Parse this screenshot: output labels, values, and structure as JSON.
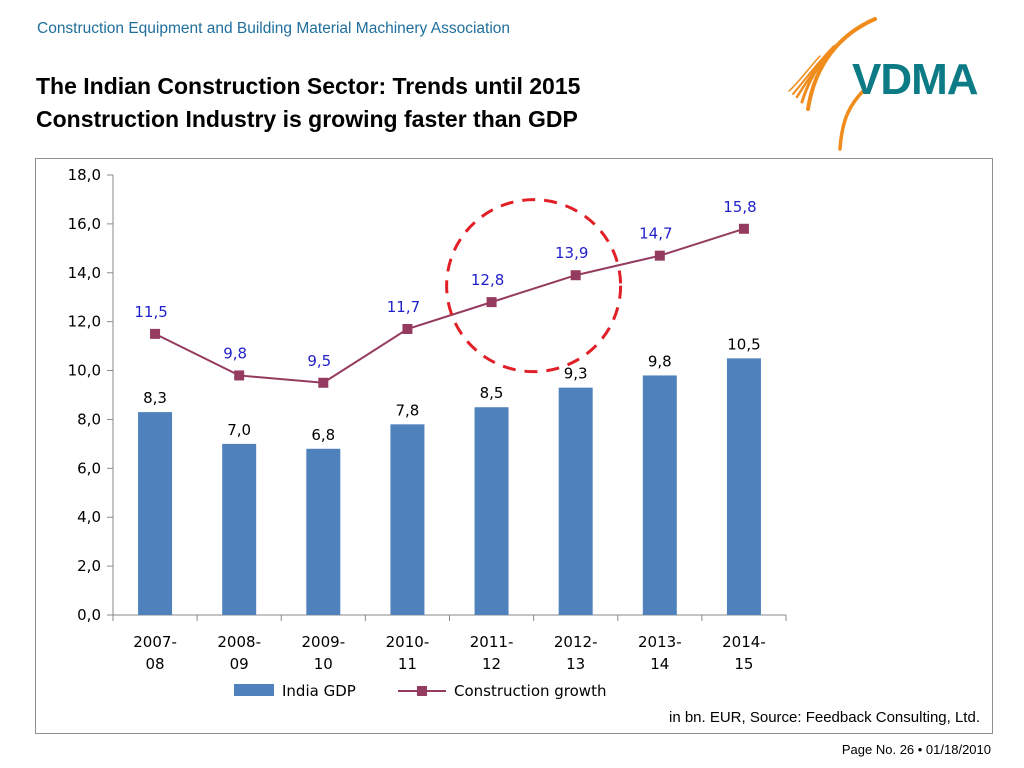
{
  "header": {
    "association": "Construction Equipment and Building Material Machinery Association",
    "title_line1": "The Indian Construction Sector: Trends until 2015",
    "title_line2": "Construction Industry is growing faster than GDP"
  },
  "logo": {
    "text": "VDMA",
    "text_color": "#0c7b86",
    "swoosh_color": "#f08c1c"
  },
  "source_note": "in bn. EUR, Source: Feedback Consulting, Ltd.",
  "footer": "Page No. 26 • 01/18/2010",
  "colors": {
    "bar": "#4f81bd",
    "line": "#953b5f",
    "line_label": "#1f1fcc",
    "highlight": "#e21f26"
  },
  "chart_data": {
    "type": "bar+line",
    "categories": [
      "2007-\n08",
      "2008-\n09",
      "2009-\n10",
      "2010-\n11",
      "2011-\n12",
      "2012-\n13",
      "2013-\n14",
      "2014-\n15"
    ],
    "series": [
      {
        "name": "India GDP",
        "type": "bar",
        "values": [
          8.3,
          7.0,
          6.8,
          7.8,
          8.5,
          9.3,
          9.8,
          10.5
        ],
        "labels": [
          "8,3",
          "7,0",
          "6,8",
          "7,8",
          "8,5",
          "9,3",
          "9,8",
          "10,5"
        ]
      },
      {
        "name": "Construction growth",
        "type": "line",
        "values": [
          11.5,
          9.8,
          9.5,
          11.7,
          12.8,
          13.9,
          14.7,
          15.8
        ],
        "labels": [
          "11,5",
          "9,8",
          "9,5",
          "11,7",
          "12,8",
          "13,9",
          "14,7",
          "15,8"
        ]
      }
    ],
    "ylim": [
      0,
      18
    ],
    "yticks": [
      "0,0",
      "2,0",
      "4,0",
      "6,0",
      "8,0",
      "10,0",
      "12,0",
      "14,0",
      "16,0",
      "18,0"
    ],
    "ytick_values": [
      0,
      2,
      4,
      6,
      8,
      10,
      12,
      14,
      16,
      18
    ],
    "legend_position": "bottom",
    "annotation": "dashed red circle highlighting 2011-12 and 2012-13 construction growth points"
  }
}
